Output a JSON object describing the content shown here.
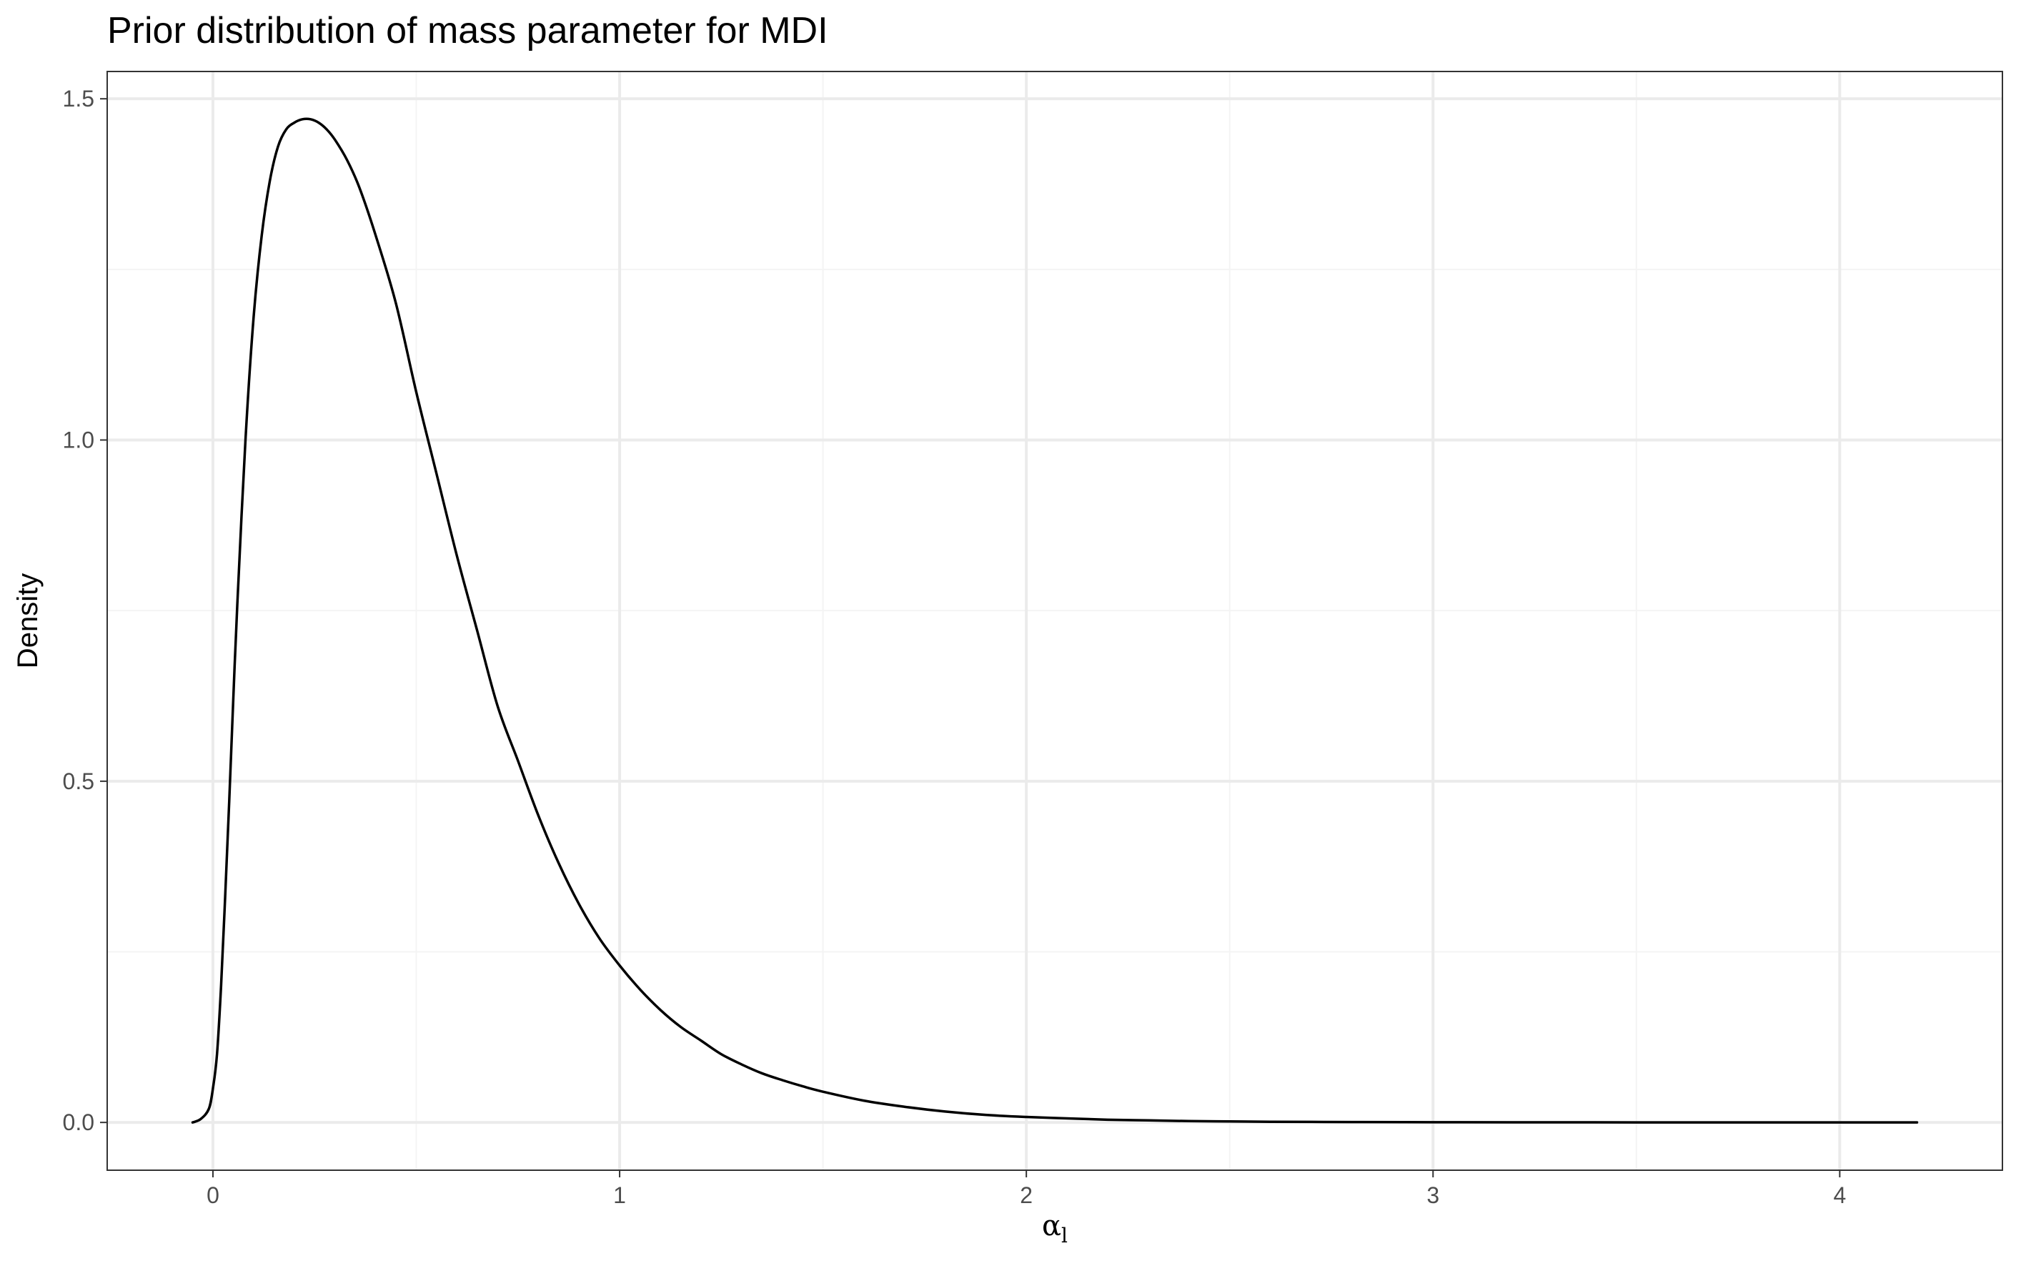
{
  "chart_data": {
    "type": "line",
    "title": "Prior distribution of mass parameter for MDI",
    "xlabel": "α",
    "xlabel_subscript": "l",
    "ylabel": "Density",
    "xlim": [
      -0.26,
      4.4
    ],
    "ylim": [
      -0.07,
      1.54
    ],
    "x_ticks": [
      {
        "value": 0,
        "label": "0"
      },
      {
        "value": 1,
        "label": "1"
      },
      {
        "value": 2,
        "label": "2"
      },
      {
        "value": 3,
        "label": "3"
      },
      {
        "value": 4,
        "label": "4"
      }
    ],
    "y_ticks": [
      {
        "value": 0.0,
        "label": "0.0"
      },
      {
        "value": 0.5,
        "label": "0.5"
      },
      {
        "value": 1.0,
        "label": "1.0"
      },
      {
        "value": 1.5,
        "label": "1.5"
      }
    ],
    "x_minor_gridlines": [
      0.5,
      1.5,
      2.5,
      3.5
    ],
    "y_minor_gridlines": [
      0.25,
      0.75,
      1.25
    ],
    "grid": true,
    "legend": "none",
    "colors": {
      "line": "#000000",
      "grid_major": "#ebebeb",
      "grid_minor": "#f4f4f4",
      "panel_border": "#333333",
      "tick_text": "#4d4d4d"
    },
    "series": [
      {
        "x": [
          -0.05,
          -0.03,
          -0.01,
          0.0,
          0.01,
          0.02,
          0.03,
          0.04,
          0.05,
          0.06,
          0.08,
          0.1,
          0.12,
          0.14,
          0.16,
          0.18,
          0.2,
          0.22,
          0.24,
          0.26,
          0.28,
          0.3,
          0.33,
          0.36,
          0.4,
          0.45,
          0.5,
          0.55,
          0.6,
          0.65,
          0.7,
          0.75,
          0.8,
          0.85,
          0.9,
          0.95,
          1.0,
          1.05,
          1.1,
          1.15,
          1.2,
          1.25,
          1.3,
          1.35,
          1.4,
          1.45,
          1.5,
          1.6,
          1.7,
          1.8,
          1.9,
          2.0,
          2.1,
          2.2,
          2.3,
          2.4,
          2.5,
          2.6,
          2.7,
          2.8,
          3.0,
          3.2,
          3.5,
          3.8,
          4.0,
          4.19
        ],
        "values": [
          0.0,
          0.005,
          0.02,
          0.05,
          0.1,
          0.2,
          0.33,
          0.47,
          0.62,
          0.76,
          1.0,
          1.18,
          1.3,
          1.38,
          1.43,
          1.455,
          1.465,
          1.47,
          1.47,
          1.465,
          1.455,
          1.44,
          1.41,
          1.37,
          1.3,
          1.2,
          1.07,
          0.95,
          0.83,
          0.72,
          0.61,
          0.53,
          0.45,
          0.38,
          0.32,
          0.27,
          0.23,
          0.195,
          0.165,
          0.14,
          0.12,
          0.1,
          0.085,
          0.072,
          0.062,
          0.053,
          0.045,
          0.032,
          0.023,
          0.016,
          0.011,
          0.008,
          0.006,
          0.004,
          0.003,
          0.002,
          0.0015,
          0.001,
          0.0008,
          0.0006,
          0.0003,
          0.0002,
          0.0001,
          5e-05,
          2e-05,
          0.0
        ]
      }
    ]
  }
}
